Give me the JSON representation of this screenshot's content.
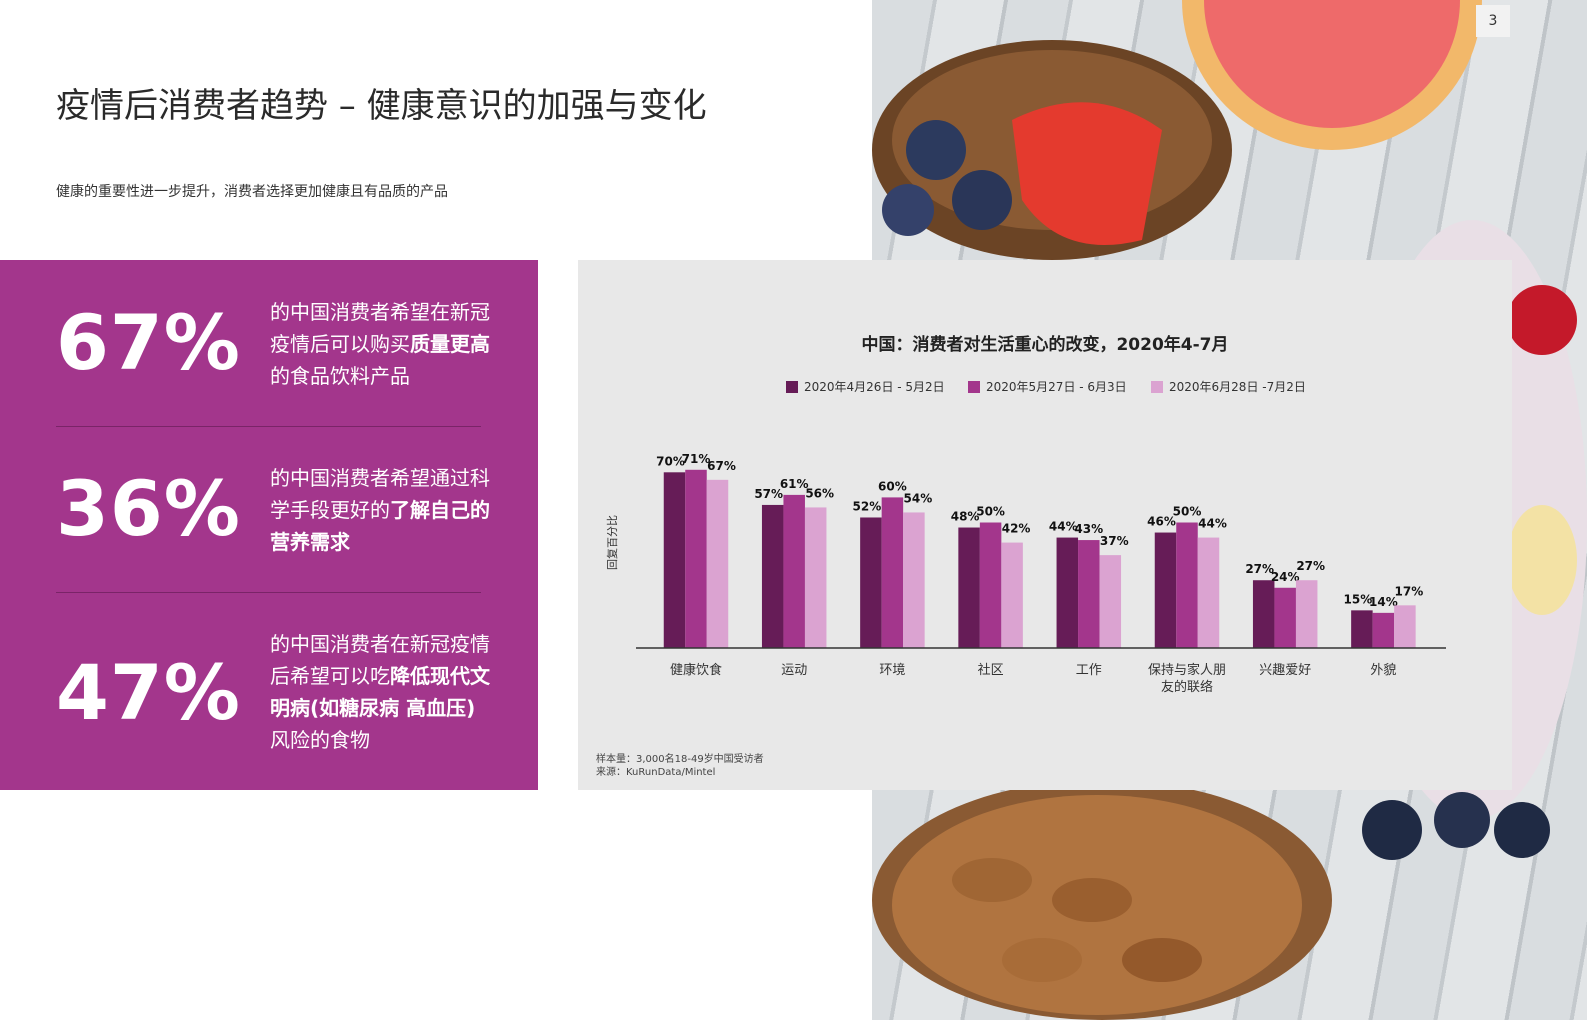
{
  "header": {
    "title": "疫情后消费者趋势 – 健康意识的加强与变化",
    "subtitle": "健康的重要性进一步提升，消费者选择更加健康且有品质的产品",
    "page_number": "3"
  },
  "stats": [
    {
      "value": "67%",
      "text_parts": [
        {
          "t": "的中国消费者希望在新冠疫情后可以购买",
          "b": false
        },
        {
          "t": "质量更高",
          "b": true
        },
        {
          "t": "的食品饮料产品",
          "b": false
        }
      ]
    },
    {
      "value": "36%",
      "text_parts": [
        {
          "t": "的中国消费者希望通过科学手段更好的",
          "b": false
        },
        {
          "t": "了解自己的营养需求",
          "b": true
        }
      ]
    },
    {
      "value": "47%",
      "text_parts": [
        {
          "t": "的中国消费者在新冠疫情后希望可以吃",
          "b": false
        },
        {
          "t": "降低现代文明病(如糖尿病 高血压)",
          "b": true
        },
        {
          "t": "风险的食物",
          "b": false
        }
      ]
    }
  ],
  "colors": {
    "panel": "#a3368c",
    "series": [
      "#661c57",
      "#a3368c",
      "#dba3d1"
    ]
  },
  "chart_data": {
    "type": "bar",
    "title": "中国：消费者对生活重心的改变，2020年4-7月",
    "ylabel": "回复百分比",
    "xlabel": "",
    "ylim": [
      0,
      100
    ],
    "grid": false,
    "legend": "top",
    "categories": [
      "健康饮食",
      "运动",
      "环境",
      "社区",
      "工作",
      "保持与家人朋友的联络",
      "兴趣爱好",
      "外貌"
    ],
    "series": [
      {
        "name": "2020年4月26日 - 5月2日",
        "values": [
          70,
          57,
          52,
          48,
          44,
          46,
          27,
          15
        ]
      },
      {
        "name": "2020年5月27日 - 6月3日",
        "values": [
          71,
          61,
          60,
          50,
          43,
          50,
          24,
          14
        ]
      },
      {
        "name": "2020年6月28日 -7月2日",
        "values": [
          67,
          56,
          54,
          42,
          37,
          44,
          27,
          17
        ]
      }
    ],
    "notes": [
      "样本量：3,000名18-49岁中国受访者",
      "来源：KuRunData/Mintel"
    ]
  }
}
